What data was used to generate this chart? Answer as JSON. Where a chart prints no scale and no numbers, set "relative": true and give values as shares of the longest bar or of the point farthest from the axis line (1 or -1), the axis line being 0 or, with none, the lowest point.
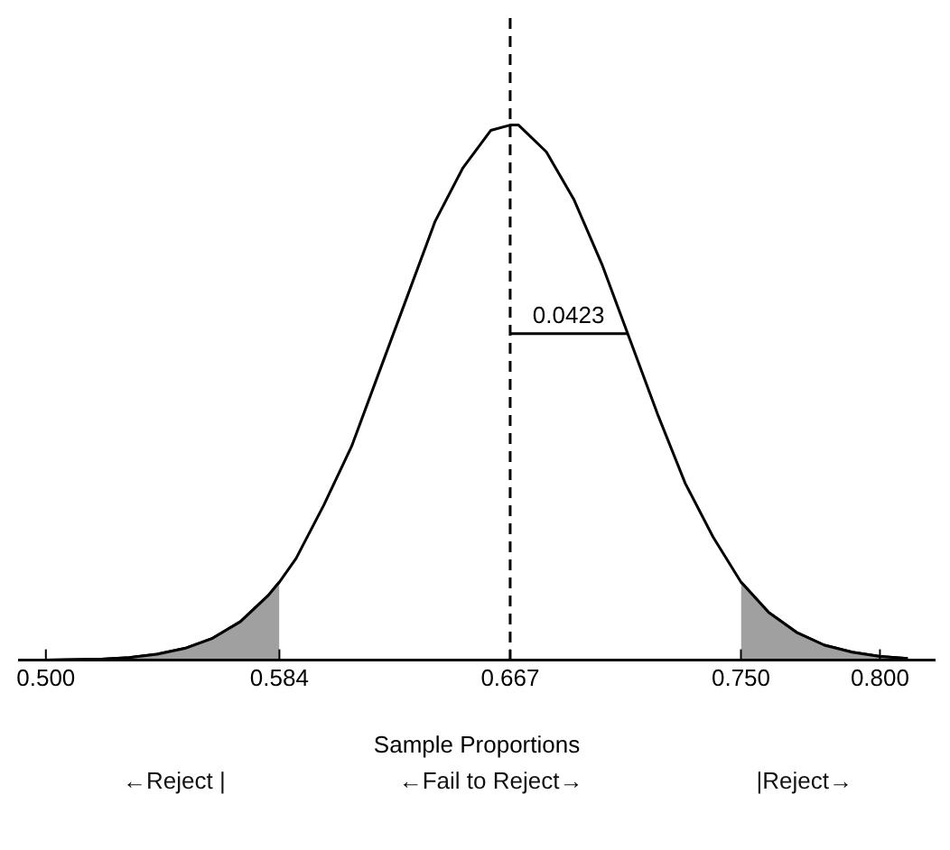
{
  "chart_data": {
    "type": "line",
    "relative": true,
    "xlabel": "Sample Proportions",
    "xlim": [
      0.49,
      0.82
    ],
    "xticks": [
      {
        "value": 0.5,
        "label": "0.500"
      },
      0.584,
      0.667,
      {
        "value": 0.75,
        "label": "0.750"
      },
      {
        "value": 0.8,
        "label": "0.800"
      }
    ],
    "grid": false,
    "legend": false,
    "marker": "none",
    "series": [
      {
        "type": "area",
        "color": "#a0a0a0",
        "x": [
          0.5,
          0.51,
          0.52,
          0.53,
          0.54,
          0.55,
          0.56,
          0.57,
          0.58,
          0.584
        ],
        "values": [
          0,
          0.001,
          0.002,
          0.005,
          0.011,
          0.022,
          0.041,
          0.072,
          0.121,
          0.146
        ]
      },
      {
        "type": "area",
        "color": "#a0a0a0",
        "x": [
          0.75,
          0.76,
          0.77,
          0.78,
          0.79,
          0.8,
          0.81
        ],
        "values": [
          0.146,
          0.089,
          0.052,
          0.028,
          0.015,
          0.007,
          0.003
        ]
      },
      {
        "color": "#000000",
        "x": [
          0.5,
          0.51,
          0.52,
          0.53,
          0.54,
          0.55,
          0.56,
          0.57,
          0.58,
          0.584,
          0.59,
          0.6,
          0.61,
          0.62,
          0.63,
          0.64,
          0.65,
          0.66,
          0.667,
          0.67,
          0.68,
          0.69,
          0.7,
          0.71,
          0.72,
          0.73,
          0.74,
          0.75,
          0.76,
          0.77,
          0.78,
          0.79,
          0.8,
          0.81
        ],
        "values": [
          0,
          0.001,
          0.002,
          0.005,
          0.011,
          0.022,
          0.041,
          0.072,
          0.121,
          0.146,
          0.19,
          0.29,
          0.4,
          0.54,
          0.68,
          0.82,
          0.92,
          0.99,
          1,
          1,
          0.95,
          0.86,
          0.74,
          0.6,
          0.46,
          0.33,
          0.23,
          0.146,
          0.089,
          0.052,
          0.028,
          0.015,
          0.007,
          0.003
        ]
      },
      {
        "color": "#000000",
        "x": [
          0.667,
          0.709
        ],
        "values": [
          0.61,
          0.61
        ]
      }
    ],
    "ref_lines": [
      {
        "axis": "x",
        "value": 0.667,
        "color": "#000000",
        "line_style": "dashed"
      }
    ],
    "annotations": [
      {
        "text": "0.0423",
        "x": 0.688,
        "y": 0.61
      },
      "←Reject |",
      "←Fail to Reject→",
      "|Reject→"
    ]
  }
}
